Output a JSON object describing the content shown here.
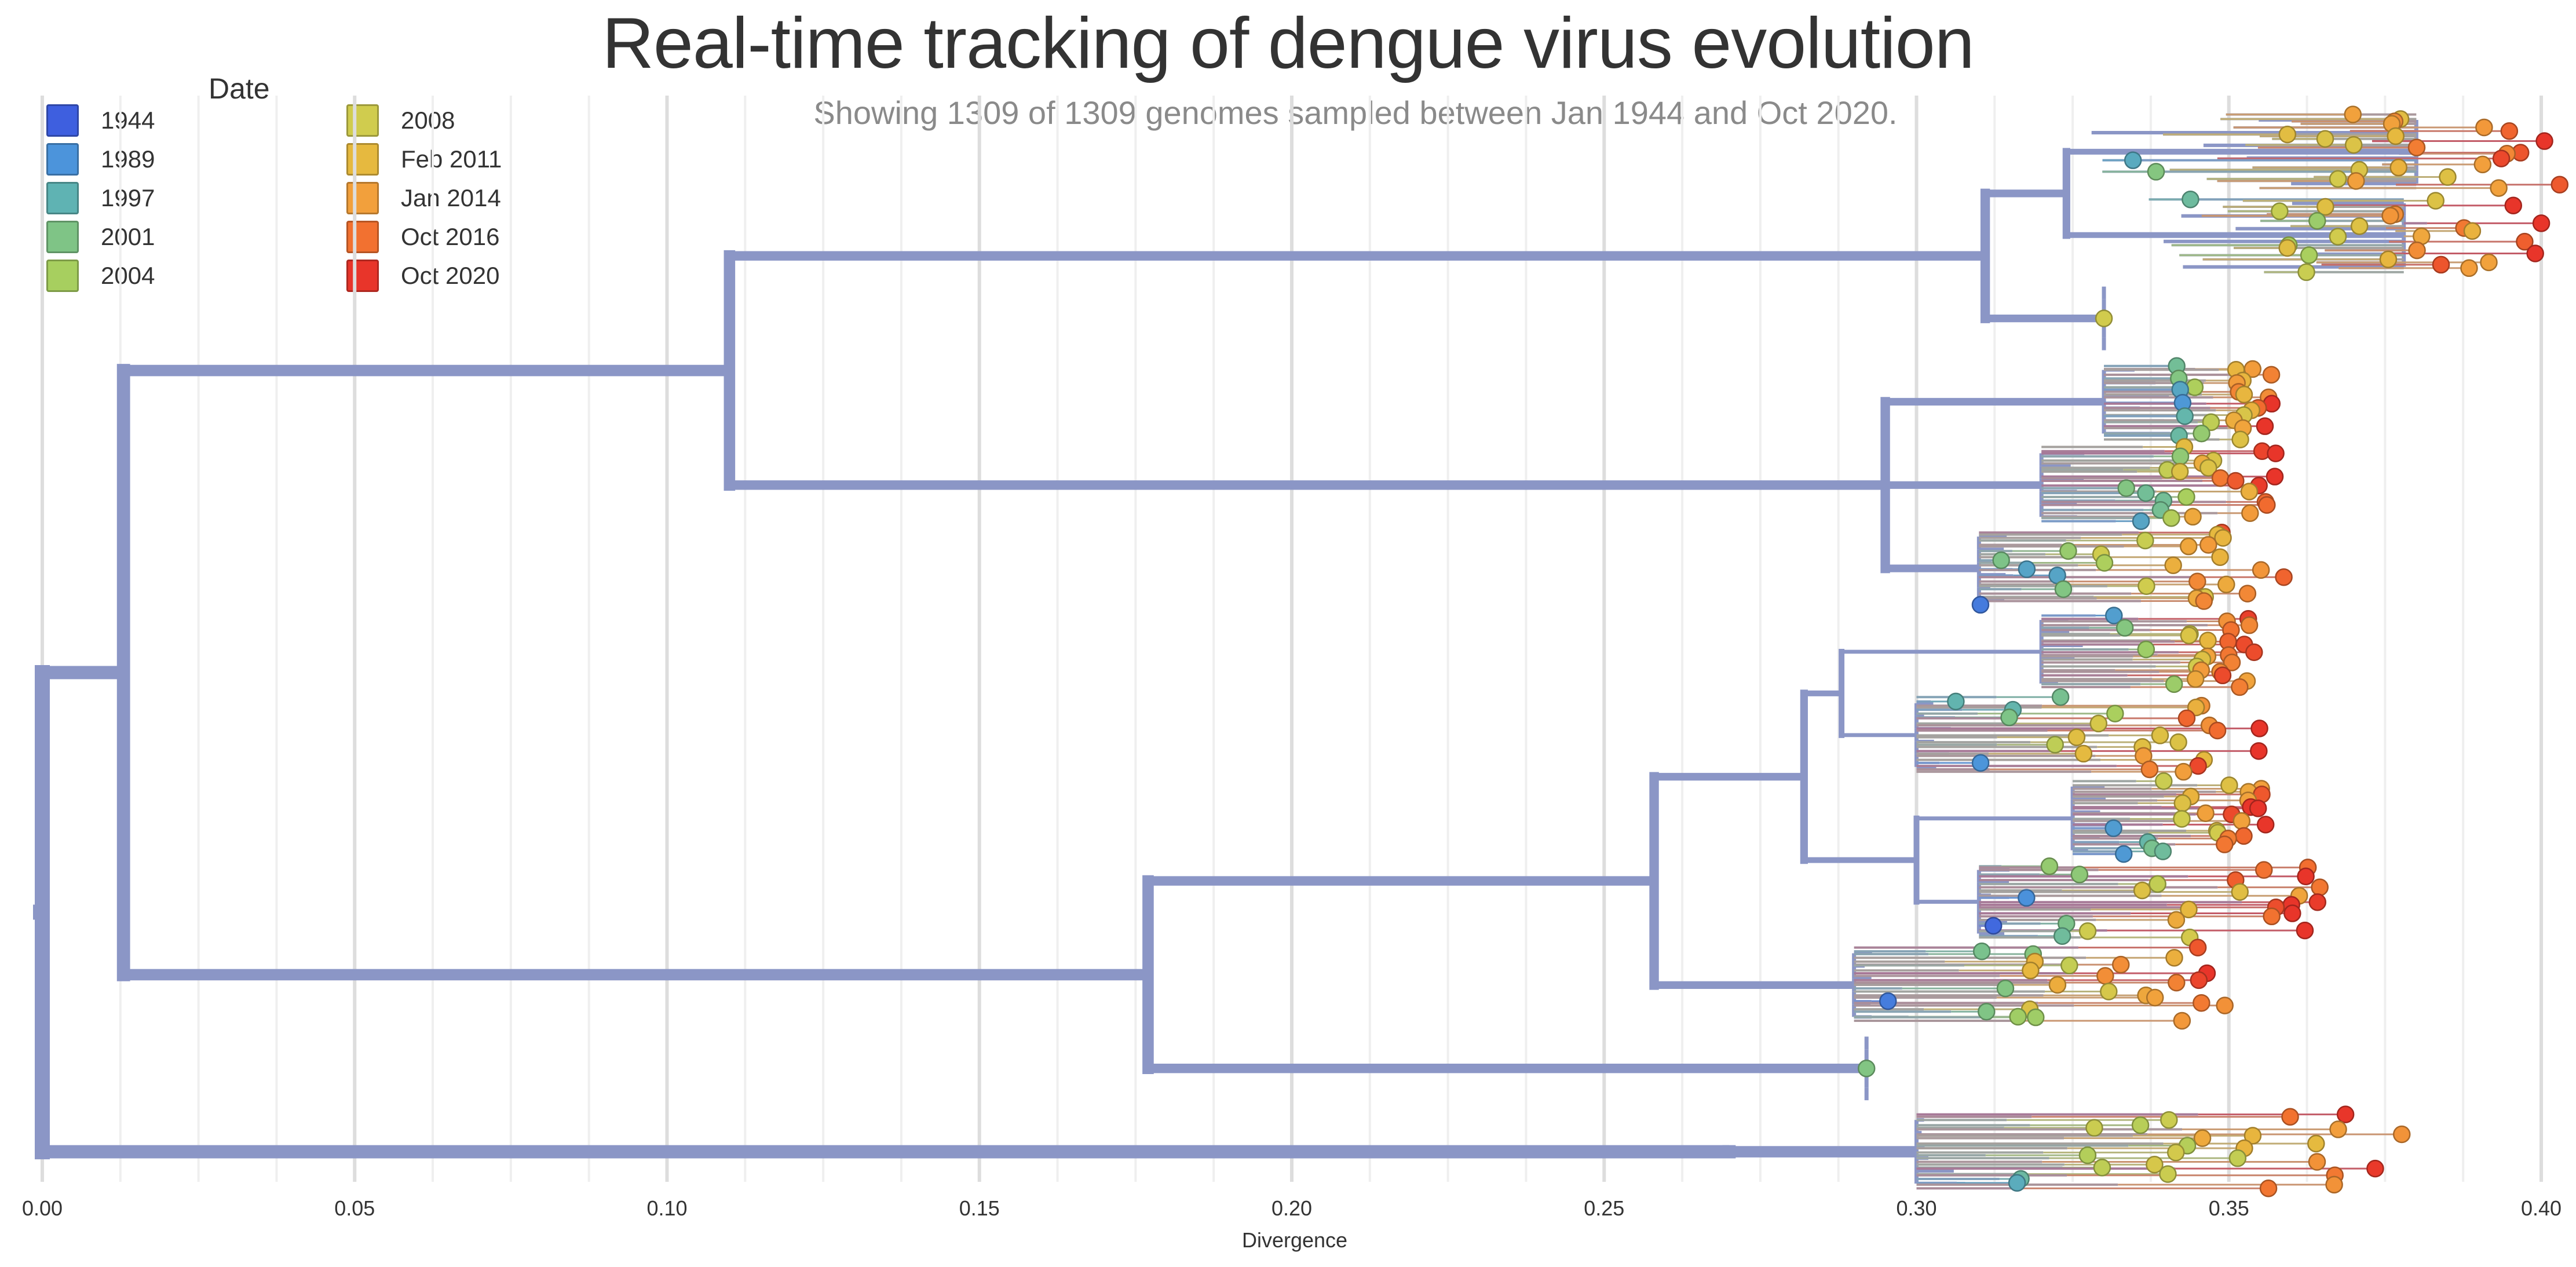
{
  "header": {
    "title": "Real-time tracking of dengue virus evolution",
    "subtitle": "Showing 1309 of 1309 genomes sampled between Jan 1944 and Oct 2020."
  },
  "legend": {
    "title": "Date",
    "items": [
      {
        "label": "1944",
        "color": "#3e5fdf"
      },
      {
        "label": "1989",
        "color": "#4c94db"
      },
      {
        "label": "1997",
        "color": "#5fb3b3"
      },
      {
        "label": "2001",
        "color": "#7fc486"
      },
      {
        "label": "2004",
        "color": "#a7cf5f"
      },
      {
        "label": "2008",
        "color": "#d0cc4e"
      },
      {
        "label": "Feb 2011",
        "color": "#e6b93f"
      },
      {
        "label": "Jan 2014",
        "color": "#f2a03c"
      },
      {
        "label": "Oct 2016",
        "color": "#f27130"
      },
      {
        "label": "Oct 2020",
        "color": "#e8352a"
      }
    ]
  },
  "chart_data": {
    "type": "tree",
    "xlabel": "Divergence",
    "xlim": [
      0.0,
      0.4
    ],
    "x_ticks": [
      {
        "value": 0.0,
        "label": "0.00"
      },
      {
        "value": 0.05,
        "label": "0.05"
      },
      {
        "value": 0.1,
        "label": "0.10"
      },
      {
        "value": 0.15,
        "label": "0.15"
      },
      {
        "value": 0.2,
        "label": "0.20"
      },
      {
        "value": 0.25,
        "label": "0.25"
      },
      {
        "value": 0.3,
        "label": "0.30"
      },
      {
        "value": 0.35,
        "label": "0.35"
      },
      {
        "value": 0.4,
        "label": "0.40"
      }
    ],
    "grid": true,
    "color_by": "Date",
    "genomes_shown": 1309,
    "genomes_total": 1309,
    "backbone_color": "#8b96c6",
    "clades": [
      {
        "from_x": 0.0,
        "x": 0.013,
        "children": [
          {
            "from_x": 0.013,
            "x": 0.11,
            "children": [
              {
                "from_x": 0.11,
                "x": 0.311,
                "children": [
                  {
                    "from_x": 0.311,
                    "x": 0.324,
                    "children": [
                      {
                        "from_x": 0.324,
                        "x": 0.38,
                        "tip_min": 0.326,
                        "tip_max": 0.403
                      },
                      {
                        "from_x": 0.324,
                        "x": 0.378,
                        "tip_min": 0.33,
                        "tip_max": 0.401
                      }
                    ]
                  },
                  {
                    "from_x": 0.311,
                    "x": 0.33,
                    "tip_min": 0.33,
                    "tip_max": 0.33
                  }
                ]
              },
              {
                "from_x": 0.11,
                "x": 0.295,
                "children": [
                  {
                    "from_x": 0.295,
                    "x": 0.33,
                    "tip_min": 0.34,
                    "tip_max": 0.357
                  },
                  {
                    "from_x": 0.295,
                    "x": 0.32,
                    "tip_min": 0.328,
                    "tip_max": 0.358
                  },
                  {
                    "from_x": 0.295,
                    "x": 0.31,
                    "tip_min": 0.31,
                    "tip_max": 0.36
                  }
                ]
              }
            ]
          },
          {
            "from_x": 0.013,
            "x": 0.177,
            "children": [
              {
                "from_x": 0.177,
                "x": 0.258,
                "children": [
                  {
                    "from_x": 0.258,
                    "x": 0.282,
                    "children": [
                      {
                        "from_x": 0.282,
                        "x": 0.288,
                        "children": [
                          {
                            "from_x": 0.288,
                            "x": 0.32,
                            "tip_min": 0.325,
                            "tip_max": 0.355
                          },
                          {
                            "from_x": 0.288,
                            "x": 0.3,
                            "tip_min": 0.3,
                            "tip_max": 0.355
                          }
                        ]
                      },
                      {
                        "from_x": 0.282,
                        "x": 0.3,
                        "children": [
                          {
                            "from_x": 0.3,
                            "x": 0.325,
                            "tip_min": 0.33,
                            "tip_max": 0.356
                          },
                          {
                            "from_x": 0.3,
                            "x": 0.31,
                            "tip_min": 0.31,
                            "tip_max": 0.365
                          }
                        ]
                      }
                    ]
                  },
                  {
                    "from_x": 0.258,
                    "x": 0.29,
                    "tip_min": 0.29,
                    "tip_max": 0.35
                  }
                ]
              },
              {
                "from_x": 0.177,
                "x": 0.292,
                "tip_min": 0.292,
                "tip_max": 0.292
              }
            ]
          }
        ]
      },
      {
        "from_x": 0.0,
        "x": 0.27,
        "children": [
          {
            "from_x": 0.27,
            "x": 0.3,
            "tip_min": 0.3,
            "tip_max": 0.38
          }
        ]
      }
    ]
  }
}
